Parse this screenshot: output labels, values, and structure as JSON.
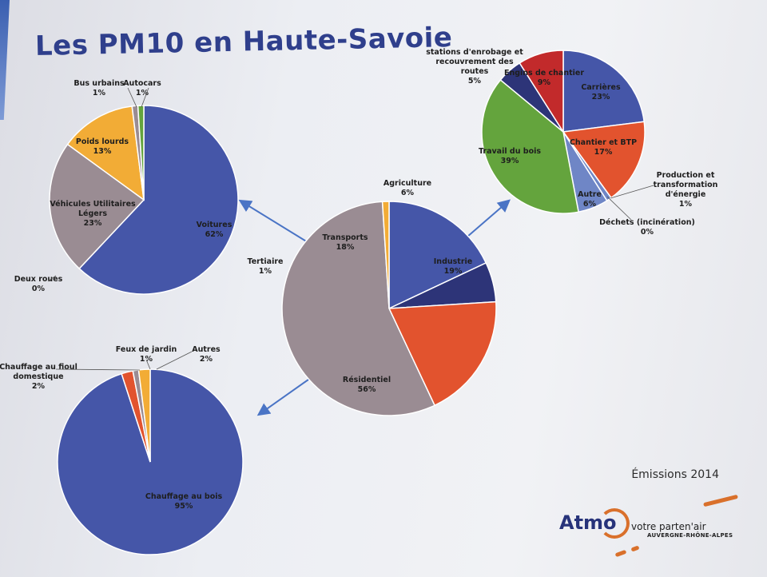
{
  "slide": {
    "title": "Les PM10 en Haute-Savoie",
    "caption": "Émissions 2014"
  },
  "logo": {
    "name": "Atmo",
    "tagline": "votre parten'air",
    "region": "AUVERGNE-RHÔNE-ALPES"
  },
  "colors": {
    "blue": "#4556a8",
    "red": "#e2532e",
    "grey": "#9a8c93",
    "orange": "#f2ac36",
    "green": "#64a43d",
    "navy": "#2d3478",
    "darkred": "#c22a2b",
    "lightblue": "#6f86c6",
    "purple": "#7f4f8f",
    "arrow": "#4a74c5",
    "title": "#2f3f8c"
  },
  "chart_data": [
    {
      "type": "pie",
      "title": "",
      "slices": [
        {
          "label": "Transports",
          "value": 18
        },
        {
          "label": "Agriculture",
          "value": 6
        },
        {
          "label": "Industrie",
          "value": 19
        },
        {
          "label": "Résidentiel",
          "value": 56
        },
        {
          "label": "Tertiaire",
          "value": 1
        }
      ]
    },
    {
      "type": "pie",
      "title": "",
      "slices": [
        {
          "label": "Voitures",
          "value": 62
        },
        {
          "label": "Deux roues",
          "value": 0
        },
        {
          "label": "Véhicules Utilitaires Légers",
          "value": 23
        },
        {
          "label": "Poids lourds",
          "value": 13
        },
        {
          "label": "Bus urbains",
          "value": 1
        },
        {
          "label": "Autocars",
          "value": 1
        }
      ]
    },
    {
      "type": "pie",
      "title": "",
      "slices": [
        {
          "label": "Carrières",
          "value": 23
        },
        {
          "label": "Chantier et BTP",
          "value": 17
        },
        {
          "label": "Production et transformation d'énergie",
          "value": 1
        },
        {
          "label": "Déchets (incinération)",
          "value": 0
        },
        {
          "label": "Autre",
          "value": 6
        },
        {
          "label": "Travail du bois",
          "value": 39
        },
        {
          "label": "stations d'enrobage et recouvrement des routes",
          "value": 5
        },
        {
          "label": "Engins de chantier",
          "value": 9
        }
      ]
    },
    {
      "type": "pie",
      "title": "",
      "slices": [
        {
          "label": "Chauffage au bois",
          "value": 95
        },
        {
          "label": "Chauffage au fioul domestique",
          "value": 2
        },
        {
          "label": "Feux de jardin",
          "value": 1
        },
        {
          "label": "Autres",
          "value": 2
        }
      ]
    }
  ]
}
